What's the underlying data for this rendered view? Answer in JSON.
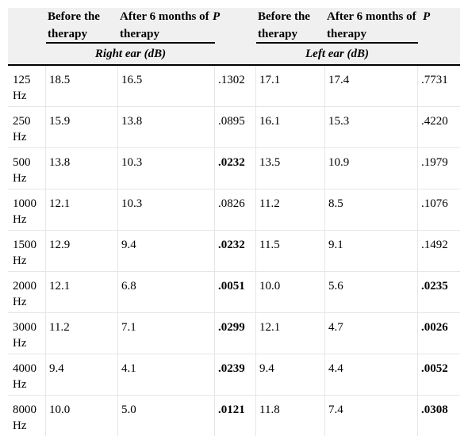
{
  "header": {
    "before_therapy": "Before the therapy",
    "after_therapy_right": "After 6 months of therapy",
    "after_therapy_left": "After 6 months of therapy",
    "p": "P",
    "right_ear": "Right ear (dB)",
    "left_ear": "Left ear (dB)"
  },
  "rows": [
    {
      "freq": "125 Hz",
      "r_before": "18.5",
      "r_after": "16.5",
      "r_p": ".1302",
      "r_p_bold": false,
      "l_before": "17.1",
      "l_after": "17.4",
      "l_p": ".7731",
      "l_p_bold": false
    },
    {
      "freq": "250 Hz",
      "r_before": "15.9",
      "r_after": "13.8",
      "r_p": ".0895",
      "r_p_bold": false,
      "l_before": "16.1",
      "l_after": "15.3",
      "l_p": ".4220",
      "l_p_bold": false
    },
    {
      "freq": "500 Hz",
      "r_before": "13.8",
      "r_after": "10.3",
      "r_p": ".0232",
      "r_p_bold": true,
      "l_before": "13.5",
      "l_after": "10.9",
      "l_p": ".1979",
      "l_p_bold": false
    },
    {
      "freq": "1000 Hz",
      "r_before": "12.1",
      "r_after": "10.3",
      "r_p": ".0826",
      "r_p_bold": false,
      "l_before": "11.2",
      "l_after": "8.5",
      "l_p": ".1076",
      "l_p_bold": false
    },
    {
      "freq": "1500 Hz",
      "r_before": "12.9",
      "r_after": "9.4",
      "r_p": ".0232",
      "r_p_bold": true,
      "l_before": "11.5",
      "l_after": "9.1",
      "l_p": ".1492",
      "l_p_bold": false
    },
    {
      "freq": "2000 Hz",
      "r_before": "12.1",
      "r_after": "6.8",
      "r_p": ".0051",
      "r_p_bold": true,
      "l_before": "10.0",
      "l_after": "5.6",
      "l_p": ".0235",
      "l_p_bold": true
    },
    {
      "freq": "3000 Hz",
      "r_before": "11.2",
      "r_after": "7.1",
      "r_p": ".0299",
      "r_p_bold": true,
      "l_before": "12.1",
      "l_after": "4.7",
      "l_p": ".0026",
      "l_p_bold": true
    },
    {
      "freq": "4000 Hz",
      "r_before": "9.4",
      "r_after": "4.1",
      "r_p": ".0239",
      "r_p_bold": true,
      "l_before": "9.4",
      "l_after": "4.4",
      "l_p": ".0052",
      "l_p_bold": true
    },
    {
      "freq": "8000 Hz",
      "r_before": "10.0",
      "r_after": "5.0",
      "r_p": ".0121",
      "r_p_bold": true,
      "l_before": "11.8",
      "l_after": "7.4",
      "l_p": ".0308",
      "l_p_bold": true
    }
  ]
}
